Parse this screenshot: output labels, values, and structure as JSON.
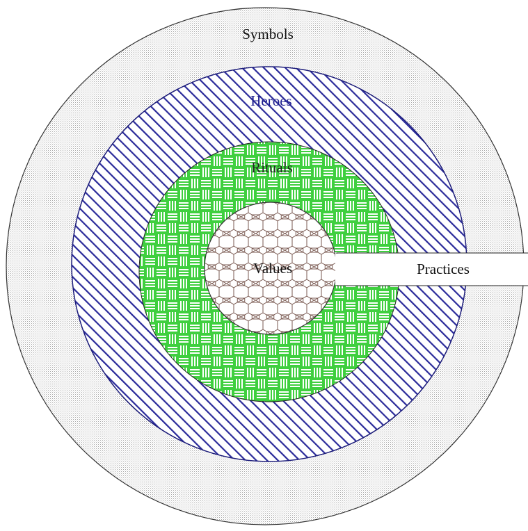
{
  "layers": [
    {
      "id": "symbols",
      "label": "Symbols",
      "fill_color": "#a8a8a8",
      "text_color": "#111111"
    },
    {
      "id": "heroes",
      "label": "Heroes",
      "fill_color": "#2a2a9a",
      "text_color": "#1f1f8f"
    },
    {
      "id": "rituals",
      "label": "Rituals",
      "fill_color": "#3fcf3f",
      "text_color": "#222222"
    },
    {
      "id": "values",
      "label": "Values",
      "fill_color": "#7a5a52",
      "text_color": "#111111"
    }
  ],
  "practices": {
    "label": "Practices"
  },
  "colors": {
    "outline": "#333333",
    "background": "#ffffff"
  }
}
